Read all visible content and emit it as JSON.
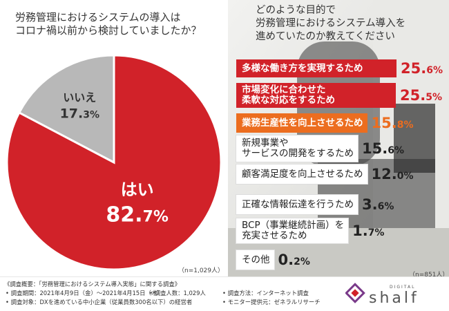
{
  "chart_data": [
    {
      "type": "pie",
      "title_lines": [
        "労務管理におけるシステムの導入は",
        "コロナ禍以前から検討していましたか？"
      ],
      "n_note": "（n=1,029人）",
      "slices": [
        {
          "label": "はい",
          "value": 82.7,
          "value_int": "82.",
          "value_dec": "7",
          "color": "#d12229"
        },
        {
          "label": "いいえ",
          "value": 17.3,
          "value_int": "17.",
          "value_dec": "3",
          "color": "#b8b8b8"
        }
      ],
      "unit": "%"
    },
    {
      "type": "bar",
      "title_lines": [
        "どのような目的で",
        "労務管理におけるシステム導入を",
        "進めていたのか教えてください"
      ],
      "n_note": "（n=851人）",
      "unit": "%",
      "items": [
        {
          "label_lines": [
            "多様な働き方を実現するため"
          ],
          "value": 25.6,
          "value_int": "25.",
          "value_dec": "6",
          "style": "red"
        },
        {
          "label_lines": [
            "市場変化に合わせた",
            "柔軟な対応をするため"
          ],
          "value": 25.5,
          "value_int": "25.",
          "value_dec": "5",
          "style": "red"
        },
        {
          "label_lines": [
            "業務生産性を向上させるため"
          ],
          "value": 15.8,
          "value_int": "15.",
          "value_dec": "8",
          "style": "orange"
        },
        {
          "label_lines": [
            "新規事業や",
            "サービスの開発をするため"
          ],
          "value": 15.6,
          "value_int": "15.",
          "value_dec": "6",
          "style": "plain"
        },
        {
          "label_lines": [
            "顧客満足度を向上させるため"
          ],
          "value": 12.0,
          "value_int": "12.",
          "value_dec": "0",
          "style": "plain"
        },
        {
          "label_lines": [
            "正確な情報伝達を行うため"
          ],
          "value": 3.6,
          "value_int": "3.",
          "value_dec": "6",
          "style": "plain"
        },
        {
          "label_lines": [
            "BCP（事業継続計画）を",
            "充実させるため"
          ],
          "value": 1.7,
          "value_int": "1.",
          "value_dec": "7",
          "style": "plain"
        },
        {
          "label_lines": [
            "その他"
          ],
          "value": 0.2,
          "value_int": "0.",
          "value_dec": "2",
          "style": "plain"
        }
      ]
    }
  ],
  "footer": {
    "line1": "《調査概要：「労務管理におけるシステム導入実態」に関する調査》",
    "line2a": "• 調査期間：2021年4月9日（金）〜2021年4月15日（木）",
    "line2b": "• 調査人数：1,029人",
    "line2c": "• 調査方法：インターネット調査",
    "line3a": "• 調査対象：DXを進めている中小企業（従業員数300名以下）の経営者",
    "line3b": "• モニター提供元：ゼネラルリサーチ"
  },
  "logo": {
    "small": "DIGITAL",
    "name": "shalf"
  },
  "colors": {
    "red": "#d12229",
    "orange": "#ec6d1f",
    "gray": "#b8b8b8",
    "plain_bg": "#ffffff"
  }
}
